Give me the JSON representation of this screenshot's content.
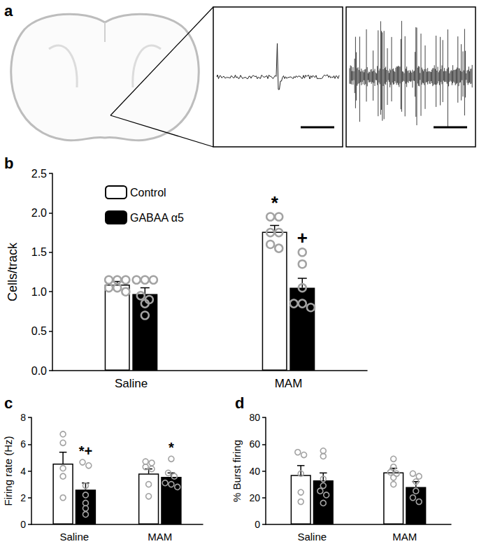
{
  "panel_a": {
    "panel_label": "a"
  },
  "chart_data": [
    {
      "type": "bar",
      "panel_label": "b",
      "ylabel": "Cells/track",
      "categories": [
        "Saline",
        "MAM"
      ],
      "series": [
        {
          "name": "Control",
          "color": "#ffffff",
          "values": [
            1.09,
            1.76
          ],
          "errors": [
            0.04,
            0.08
          ],
          "points": [
            [
              1.15,
              1.15,
              1.15,
              1.05,
              1.05,
              1.0
            ],
            [
              1.95,
              1.95,
              1.75,
              1.75,
              1.6,
              1.55
            ]
          ]
        },
        {
          "name": "GABAA α5",
          "color": "#000000",
          "values": [
            0.97,
            1.05
          ],
          "errors": [
            0.08,
            0.12
          ],
          "points": [
            [
              1.15,
              1.15,
              1.15,
              0.95,
              0.9,
              0.85,
              0.7
            ],
            [
              1.5,
              1.35,
              1.05,
              0.85,
              0.85,
              0.8
            ]
          ]
        }
      ],
      "annotations": [
        {
          "text": "*",
          "category": "MAM",
          "series": "Control"
        },
        {
          "text": "+",
          "category": "MAM",
          "series": "GABAA α5"
        }
      ],
      "ylim": [
        0,
        2.5
      ],
      "yticks": [
        {
          "value": 0,
          "label": "0.0"
        },
        0.5,
        {
          "value": 1,
          "label": "1.0"
        },
        1.5,
        {
          "value": 2,
          "label": "2.0"
        },
        2.5
      ],
      "grid": false,
      "legend": "upper left"
    },
    {
      "type": "bar",
      "panel_label": "c",
      "ylabel": "Firing rate (Hz)",
      "categories": [
        "Saline",
        "MAM"
      ],
      "series": [
        {
          "name": "Control",
          "color": "#ffffff",
          "values": [
            4.55,
            3.8
          ],
          "errors": [
            0.85,
            0.35
          ],
          "points": [
            [
              6.75,
              6.1,
              4.2,
              3.6,
              2.0
            ],
            [
              4.7,
              4.6,
              4.3,
              4.15,
              3.0,
              2.1
            ]
          ]
        },
        {
          "name": "GABAA α5",
          "color": "#000000",
          "values": [
            2.6,
            3.55
          ],
          "errors": [
            0.5,
            0.3
          ],
          "points": [
            [
              4.65,
              4.4,
              2.9,
              2.2,
              1.6,
              1.2,
              0.75
            ],
            [
              4.9,
              3.85,
              3.6,
              3.1,
              3.0,
              2.8
            ]
          ]
        }
      ],
      "annotations": [
        {
          "text": "*+",
          "category": "Saline",
          "series": "GABAA α5"
        },
        {
          "text": "*",
          "category": "MAM",
          "series": "GABAA α5"
        }
      ],
      "ylim": [
        0,
        8
      ],
      "yticks": [
        0,
        2,
        4,
        6,
        8
      ],
      "grid": false
    },
    {
      "type": "bar",
      "panel_label": "d",
      "ylabel": "% Burst firing",
      "categories": [
        "Saline",
        "MAM"
      ],
      "series": [
        {
          "name": "Control",
          "color": "#ffffff",
          "values": [
            37,
            39
          ],
          "errors": [
            7,
            3
          ],
          "points": [
            [
              54,
              52,
              38,
              24,
              17
            ],
            [
              49,
              43,
              39,
              38,
              35,
              30
            ]
          ]
        },
        {
          "name": "GABAA α5",
          "color": "#000000",
          "values": [
            33,
            28
          ],
          "errors": [
            5.5,
            4
          ],
          "points": [
            [
              55,
              51,
              34,
              29,
              25,
              22,
              16
            ],
            [
              38,
              36,
              32,
              25,
              20,
              17
            ]
          ]
        }
      ],
      "annotations": [],
      "ylim": [
        0,
        80
      ],
      "yticks": [
        0,
        20,
        40,
        60,
        80
      ],
      "grid": false
    }
  ]
}
